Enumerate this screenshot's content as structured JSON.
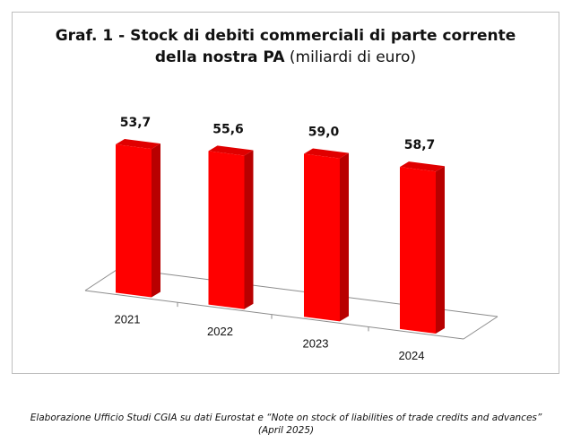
{
  "title": {
    "line1": "Graf.  1 - Stock di debiti commerciali di parte corrente",
    "line2_bold": "della nostra PA",
    "line2_rest": " (miliardi di euro)"
  },
  "source_note": {
    "line1": "Elaborazione Ufficio Studi CGIA su dati Eurostat e “Note on stock of liabilities of trade credits and advances”",
    "line2": "(April 2025)"
  },
  "colors": {
    "bar_front": "#ff0000",
    "bar_side": "#b80000",
    "bar_top": "#e00000",
    "floor_line": "#8c8c8c"
  },
  "chart_data": {
    "type": "bar",
    "categories": [
      "2021",
      "2022",
      "2023",
      "2024"
    ],
    "values": [
      53.7,
      55.6,
      59.0,
      58.7
    ],
    "value_labels": [
      "53,7",
      "55,6",
      "59,0",
      "58,7"
    ],
    "title": "Graf.  1 - Stock di debiti commerciali di parte corrente della nostra PA (miliardi di euro)",
    "style": "3d-columns",
    "grid": false,
    "legend": "none"
  }
}
